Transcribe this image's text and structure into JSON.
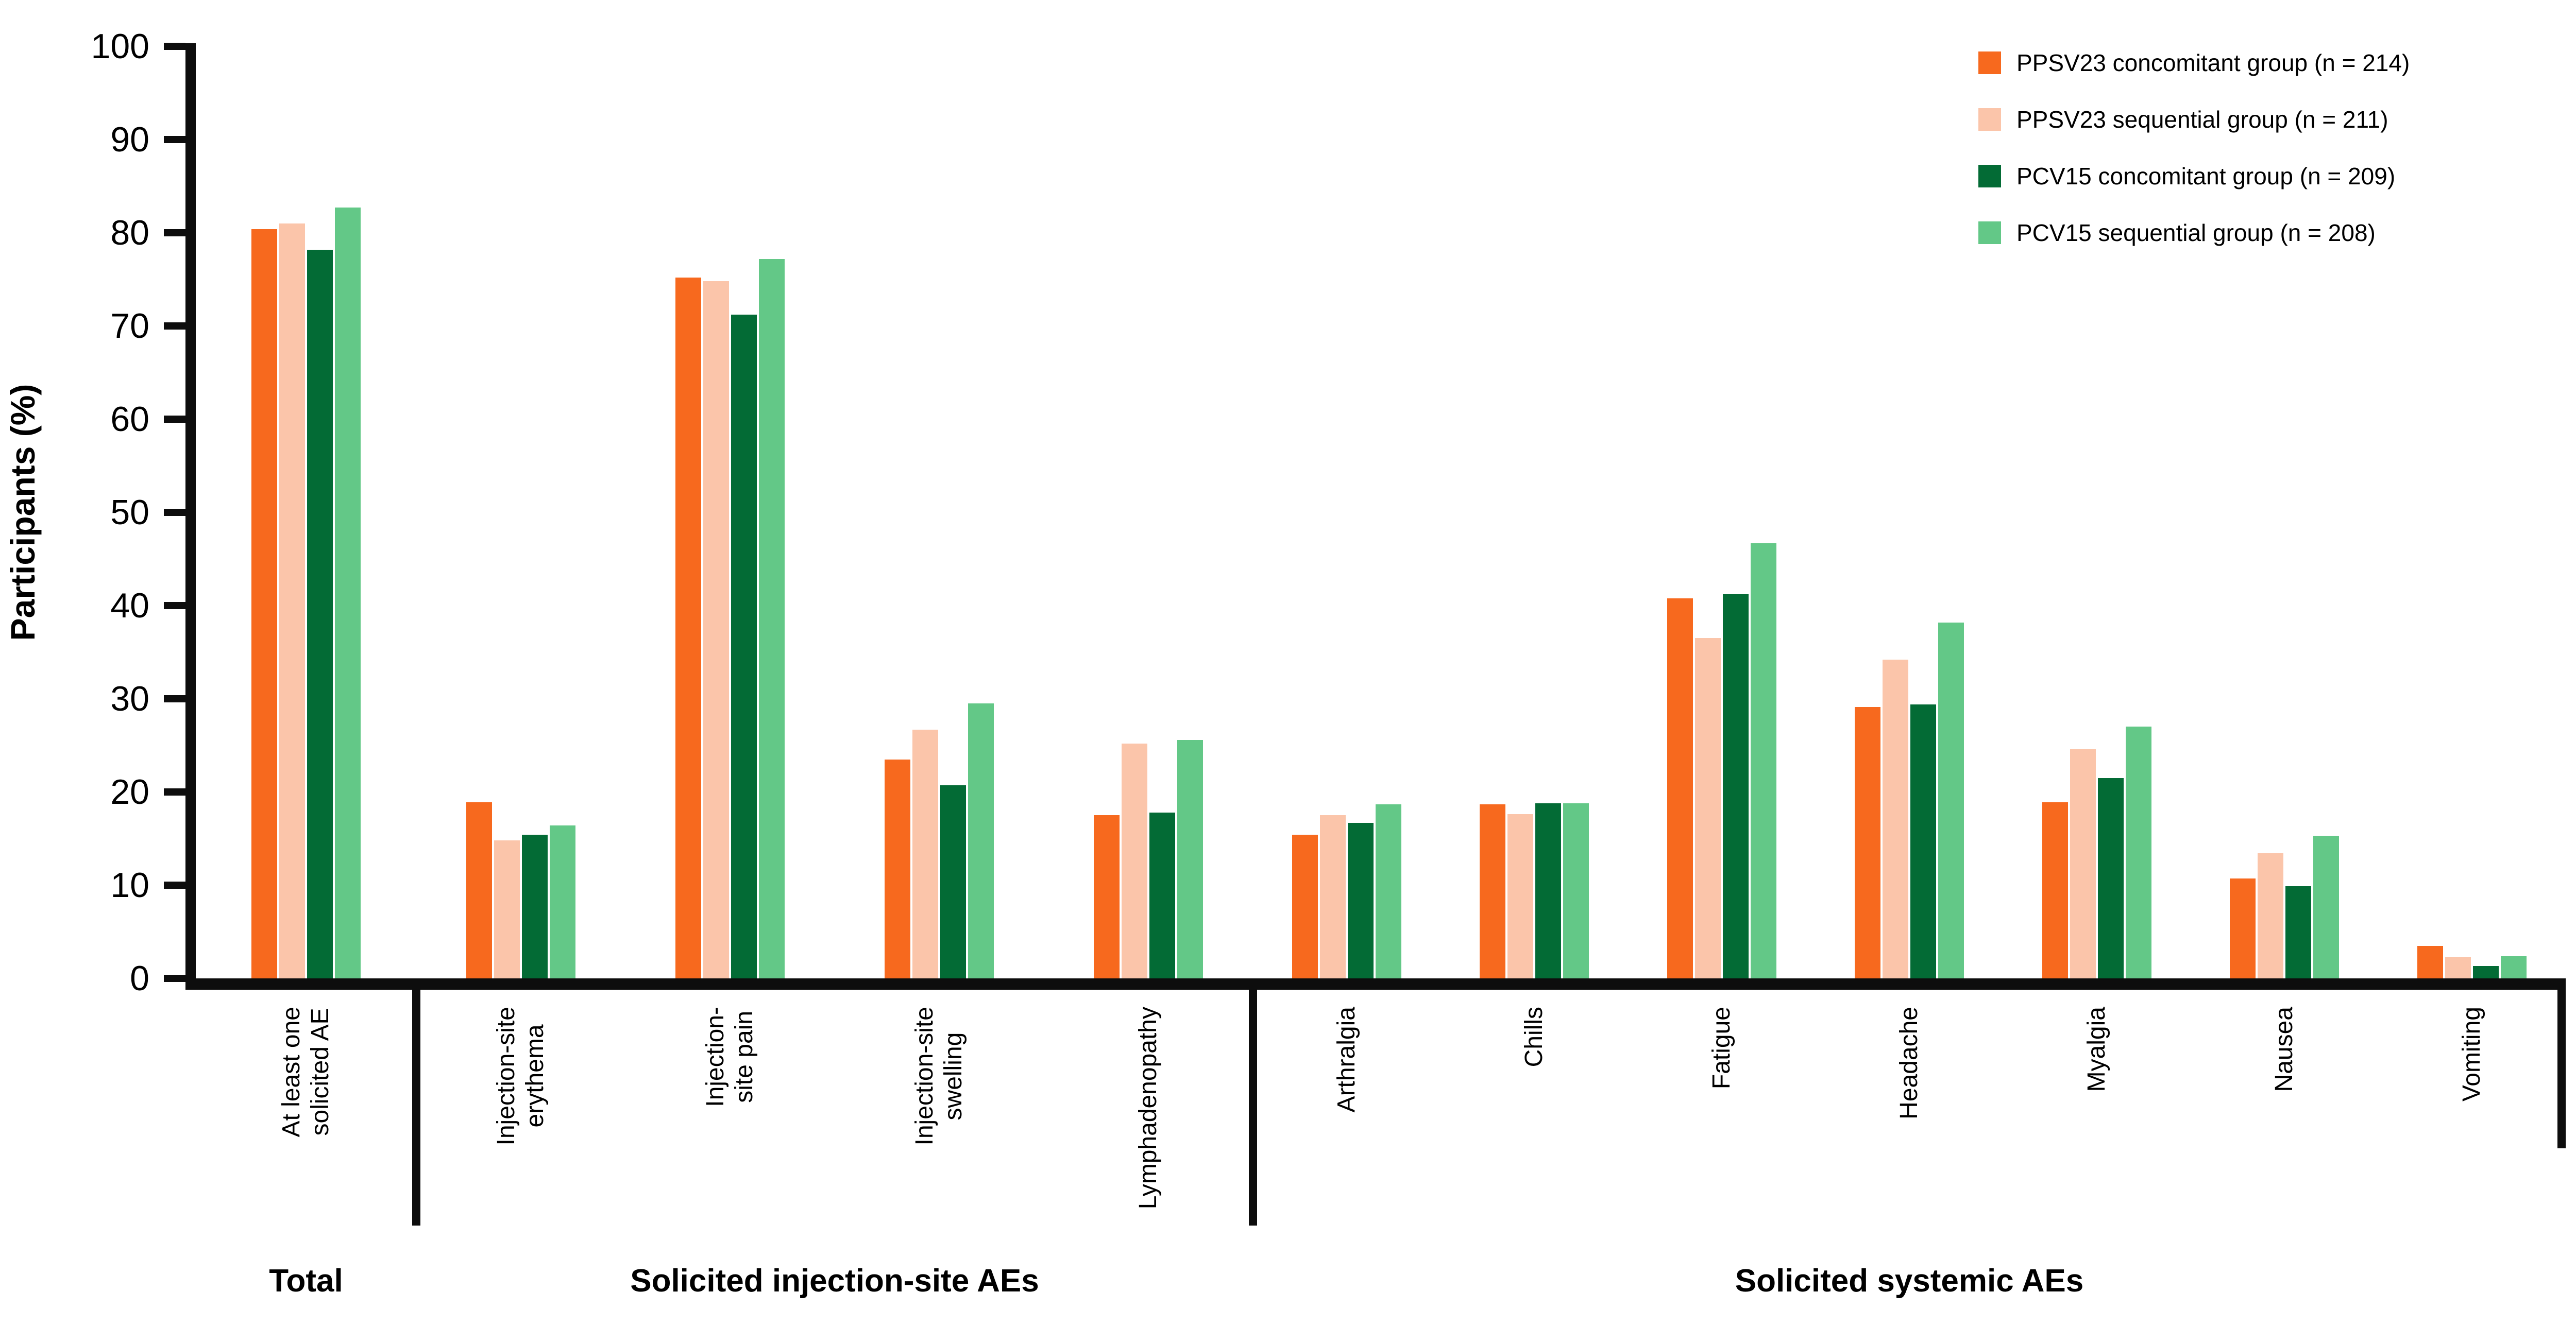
{
  "chart_data": {
    "type": "bar",
    "title": "",
    "ylabel": "Participants (%)",
    "ylim": [
      0,
      100
    ],
    "yticks": [
      0,
      10,
      20,
      30,
      40,
      50,
      60,
      70,
      80,
      90,
      100
    ],
    "grid": false,
    "legend_position": "top-right",
    "axis_color": "#0d0d0d",
    "series": [
      {
        "name": "PPSV23 concomitant group (n = 214)",
        "color": "#F7691E",
        "values": [
          80.4,
          18.9,
          75.2,
          23.5,
          17.5,
          15.4,
          18.7,
          40.8,
          29.1,
          18.9,
          10.7,
          3.5
        ]
      },
      {
        "name": "PPSV23 sequential group (n = 211)",
        "color": "#FBC5AA",
        "values": [
          81.0,
          14.8,
          74.8,
          26.7,
          25.2,
          17.5,
          17.6,
          36.5,
          34.2,
          24.6,
          13.4,
          2.3
        ]
      },
      {
        "name": "PCV15 concomitant group (n = 209)",
        "color": "#036B35",
        "values": [
          78.2,
          15.4,
          71.2,
          20.7,
          17.8,
          16.7,
          18.8,
          41.2,
          29.4,
          21.5,
          9.9,
          1.3
        ]
      },
      {
        "name": "PCV15 sequential group (n = 208)",
        "color": "#63C887",
        "values": [
          82.7,
          16.4,
          77.2,
          29.5,
          25.6,
          18.7,
          18.8,
          46.7,
          38.2,
          27.0,
          15.3,
          2.4
        ]
      }
    ],
    "categories": [
      {
        "label_lines": [
          "At least one",
          "solicited AE"
        ]
      },
      {
        "label_lines": [
          "Injection-site",
          "erythema"
        ]
      },
      {
        "label_lines": [
          "Injection-",
          "site pain"
        ]
      },
      {
        "label_lines": [
          "Injection-site",
          "swelling"
        ]
      },
      {
        "label_lines": [
          "Lymphadenopathy"
        ]
      },
      {
        "label_lines": [
          "Arthralgia"
        ]
      },
      {
        "label_lines": [
          "Chills"
        ]
      },
      {
        "label_lines": [
          "Fatigue"
        ]
      },
      {
        "label_lines": [
          "Headache"
        ]
      },
      {
        "label_lines": [
          "Myalgia"
        ]
      },
      {
        "label_lines": [
          "Nausea"
        ]
      },
      {
        "label_lines": [
          "Vomiting"
        ]
      }
    ],
    "sections": [
      {
        "header": "Total",
        "category_indices": [
          0
        ]
      },
      {
        "header": "Solicited injection-site AEs",
        "category_indices": [
          1,
          2,
          3,
          4
        ]
      },
      {
        "header": "Solicited systemic AEs",
        "category_indices": [
          5,
          6,
          7,
          8,
          9,
          10,
          11
        ]
      }
    ]
  }
}
